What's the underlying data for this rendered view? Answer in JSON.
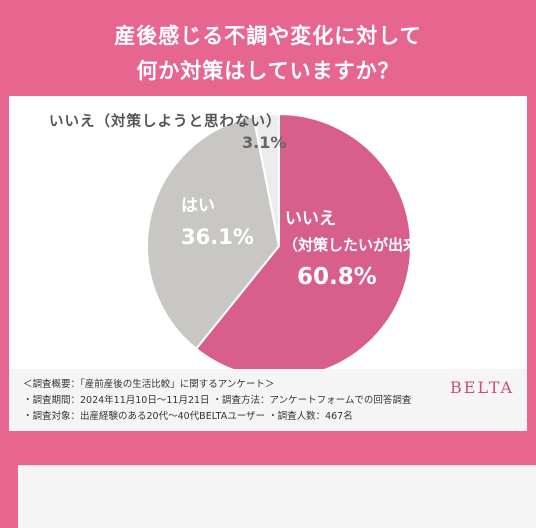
{
  "title": {
    "line1": "産後感じる不調や変化に対して",
    "line2": "何か対策はしていますか？"
  },
  "colors": {
    "accent": "#e7668f",
    "slice_no_action": "#d85f8b",
    "slice_yes": "#c9c7c4",
    "slice_no_intention": "#ececec",
    "brand": "#cf4d7c"
  },
  "chart_data": {
    "type": "pie",
    "slices": [
      {
        "label": "いいえ（対策したいが出来ていない）",
        "label_line1": "いいえ",
        "label_line2": "（対策したいが出来ていない）",
        "value": 60.8,
        "value_label": "60.8%",
        "color": "#d85f8b"
      },
      {
        "label": "はい",
        "value": 36.1,
        "value_label": "36.1%",
        "color": "#c9c7c4"
      },
      {
        "label": "いいえ（対策しようと思わない）",
        "value": 3.1,
        "value_label": "3.1%",
        "color": "#ececec"
      }
    ]
  },
  "footer": {
    "notes": [
      "＜調査概要：「産前産後の生活比較」に関するアンケート＞",
      "・調査期間：2024年11月10日〜11月21日 ・調査方法：アンケートフォームでの回答調査",
      "・調査対象：出産経験のある20代〜40代BELTAユーザー ・調査人数：467名"
    ],
    "brand": "BELTA"
  }
}
